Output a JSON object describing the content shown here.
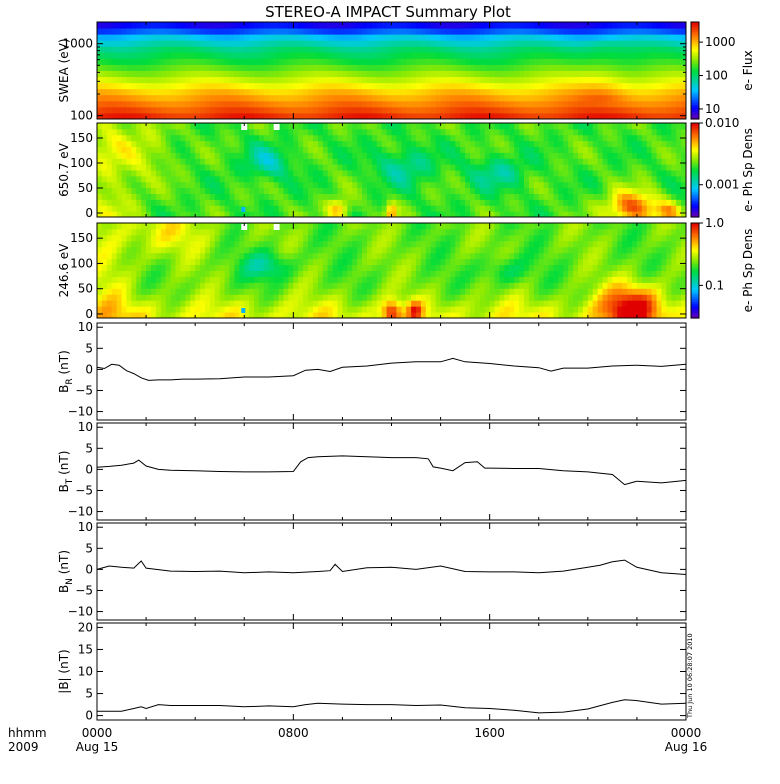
{
  "title": "STEREO-A IMPACT Summary Plot",
  "time_axis": {
    "corner_labels": [
      "hhmm",
      "2009"
    ],
    "ticks": [
      {
        "hour": 0,
        "time": "0000",
        "date": "Aug 15"
      },
      {
        "hour": 8,
        "time": "0800",
        "date": ""
      },
      {
        "hour": 16,
        "time": "1600",
        "date": ""
      },
      {
        "hour": 24,
        "time": "0000",
        "date": "Aug 16"
      }
    ],
    "range_hours": [
      0,
      24
    ]
  },
  "timestamp": "Thu Jun 10 06:28:07 2010",
  "chart_data": [
    {
      "type": "heatmap",
      "ylabel": "SWEA (eV)",
      "yscale": "log",
      "ylim": [
        90,
        2000
      ],
      "yticks": [
        {
          "value": 100,
          "label": "100"
        },
        {
          "value": 1000,
          "label": "1000"
        }
      ],
      "colorbar": {
        "label": "e- Flux",
        "scale": "log",
        "range": [
          5,
          4000
        ],
        "ticks": [
          {
            "value": 10,
            "label": "10"
          },
          {
            "value": 100,
            "label": "100"
          },
          {
            "value": 1000,
            "label": "1000"
          }
        ]
      }
    },
    {
      "type": "heatmap",
      "ylabel": "650.7 eV",
      "ylim": [
        -8,
        180
      ],
      "yticks": [
        {
          "value": 0,
          "label": "0"
        },
        {
          "value": 50,
          "label": "50"
        },
        {
          "value": 100,
          "label": "100"
        },
        {
          "value": 150,
          "label": "150"
        }
      ],
      "colorbar": {
        "label": "e- Ph Sp Dens",
        "scale": "log",
        "range": [
          0.0003,
          0.01
        ],
        "ticks": [
          {
            "value": 0.001,
            "label": "0.001"
          },
          {
            "value": 0.01,
            "label": "0.010"
          }
        ]
      }
    },
    {
      "type": "heatmap",
      "ylabel": "246.6 eV",
      "ylim": [
        -8,
        180
      ],
      "yticks": [
        {
          "value": 0,
          "label": "0"
        },
        {
          "value": 50,
          "label": "50"
        },
        {
          "value": 100,
          "label": "100"
        },
        {
          "value": 150,
          "label": "150"
        }
      ],
      "colorbar": {
        "label": "e- Ph Sp Dens",
        "scale": "log",
        "range": [
          0.03,
          1.0
        ],
        "ticks": [
          {
            "value": 0.1,
            "label": "0.1"
          },
          {
            "value": 1.0,
            "label": "1.0"
          }
        ]
      }
    },
    {
      "type": "line",
      "ylabel": {
        "base": "B",
        "sub": "R",
        "unit": " (nT)"
      },
      "ylim": [
        -12,
        11
      ],
      "yticks": [
        {
          "value": -10,
          "label": "−10"
        },
        {
          "value": -5,
          "label": "−5"
        },
        {
          "value": 0,
          "label": "0"
        },
        {
          "value": 5,
          "label": "5"
        },
        {
          "value": 10,
          "label": "10"
        }
      ],
      "x": [
        0,
        0.3,
        0.6,
        0.9,
        1.2,
        1.5,
        1.8,
        2.1,
        2.5,
        3,
        3.5,
        4,
        5,
        6,
        7,
        8,
        8.5,
        9,
        9.5,
        10,
        11,
        12,
        13,
        14,
        14.5,
        15,
        16,
        17,
        18,
        18.5,
        19,
        20,
        21,
        22,
        23,
        24
      ],
      "y": [
        0.5,
        0.2,
        1.2,
        1.0,
        -0.3,
        -1.0,
        -2.0,
        -2.6,
        -2.5,
        -2.5,
        -2.3,
        -2.3,
        -2.2,
        -1.8,
        -1.8,
        -1.5,
        -0.2,
        0.0,
        -0.5,
        0.5,
        0.8,
        1.5,
        1.8,
        1.8,
        2.6,
        1.8,
        1.4,
        0.8,
        0.4,
        -0.4,
        0.3,
        0.3,
        0.8,
        1.0,
        0.7,
        1.2
      ]
    },
    {
      "type": "line",
      "ylabel": {
        "base": "B",
        "sub": "T",
        "unit": " (nT)"
      },
      "ylim": [
        -12,
        11
      ],
      "yticks": [
        {
          "value": -10,
          "label": "−10"
        },
        {
          "value": -5,
          "label": "−5"
        },
        {
          "value": 0,
          "label": "0"
        },
        {
          "value": 5,
          "label": "5"
        },
        {
          "value": 10,
          "label": "10"
        }
      ],
      "x": [
        0,
        0.5,
        1,
        1.5,
        1.7,
        2,
        2.5,
        3,
        4,
        5,
        6,
        7,
        8,
        8.3,
        8.6,
        9,
        10,
        11,
        12,
        13,
        13.5,
        13.7,
        14,
        14.5,
        15,
        15.5,
        15.8,
        16,
        17,
        18,
        19,
        20,
        21,
        21.5,
        22,
        23,
        24
      ],
      "y": [
        0.5,
        0.7,
        1.0,
        1.5,
        2.2,
        0.8,
        0.0,
        -0.2,
        -0.3,
        -0.5,
        -0.6,
        -0.6,
        -0.5,
        1.8,
        2.8,
        3.0,
        3.2,
        3.0,
        2.8,
        2.8,
        2.5,
        0.6,
        0.3,
        -0.3,
        1.6,
        1.8,
        0.3,
        0.3,
        0.2,
        0.2,
        -0.3,
        -0.6,
        -1.2,
        -3.6,
        -2.8,
        -3.2,
        -2.6
      ]
    },
    {
      "type": "line",
      "ylabel": {
        "base": "B",
        "sub": "N",
        "unit": " (nT)"
      },
      "ylim": [
        -12,
        11
      ],
      "yticks": [
        {
          "value": -10,
          "label": "−10"
        },
        {
          "value": -5,
          "label": "−5"
        },
        {
          "value": 0,
          "label": "0"
        },
        {
          "value": 5,
          "label": "5"
        },
        {
          "value": 10,
          "label": "10"
        }
      ],
      "x": [
        0,
        0.5,
        1,
        1.5,
        1.8,
        2,
        3,
        4,
        5,
        6,
        7,
        8,
        9,
        9.5,
        9.7,
        10,
        11,
        12,
        13,
        14,
        15,
        16,
        17,
        18,
        19,
        20,
        20.5,
        21,
        21.5,
        22,
        23,
        24
      ],
      "y": [
        0.0,
        0.8,
        0.5,
        0.3,
        2.0,
        0.3,
        -0.4,
        -0.5,
        -0.4,
        -0.8,
        -0.6,
        -0.8,
        -0.5,
        -0.3,
        1.2,
        -0.5,
        0.4,
        0.5,
        0.0,
        0.8,
        -0.5,
        -0.6,
        -0.6,
        -0.8,
        -0.4,
        0.5,
        1.0,
        1.8,
        2.2,
        0.5,
        -0.8,
        -1.2
      ]
    },
    {
      "type": "line",
      "ylabel": {
        "base": "|B|",
        "sub": "",
        "unit": " (nT)"
      },
      "ylim": [
        -1,
        21
      ],
      "yticks": [
        {
          "value": 0,
          "label": "0"
        },
        {
          "value": 5,
          "label": "5"
        },
        {
          "value": 10,
          "label": "10"
        },
        {
          "value": 15,
          "label": "15"
        },
        {
          "value": 20,
          "label": "20"
        }
      ],
      "x": [
        0,
        1,
        1.5,
        1.8,
        2,
        2.5,
        3,
        4,
        5,
        6,
        7,
        8,
        8.5,
        9,
        10,
        11,
        12,
        13,
        14,
        15,
        16,
        17,
        18,
        19,
        20,
        21,
        21.5,
        22,
        23,
        24
      ],
      "y": [
        1.0,
        1.0,
        1.6,
        2.0,
        1.6,
        2.5,
        2.3,
        2.3,
        2.3,
        2.0,
        2.2,
        2.0,
        2.5,
        2.8,
        2.6,
        2.5,
        2.5,
        2.3,
        2.4,
        1.8,
        1.6,
        1.2,
        0.6,
        0.8,
        1.5,
        3.0,
        3.6,
        3.4,
        2.6,
        2.8
      ]
    }
  ]
}
